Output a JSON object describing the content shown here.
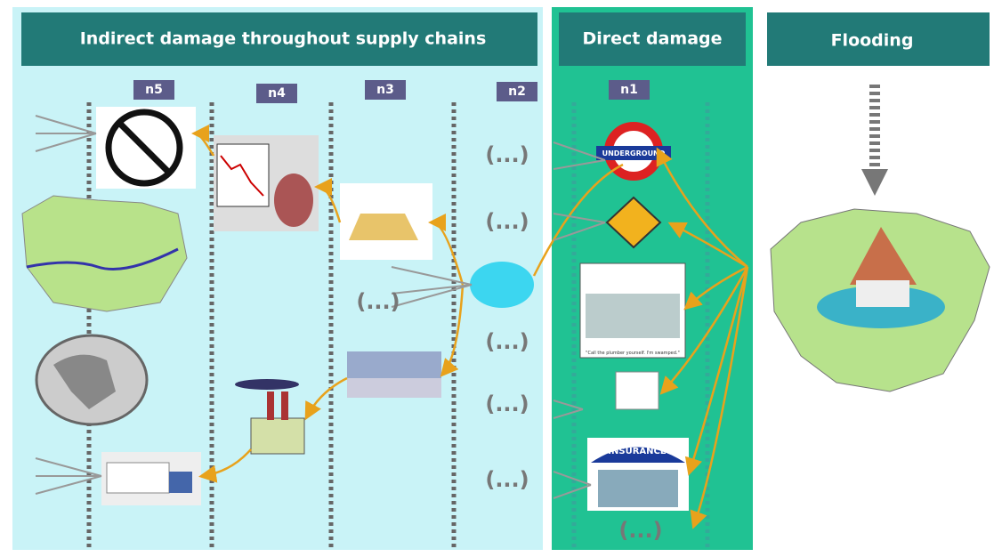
{
  "panels": [
    {
      "title": "Indirect damage throughout supply chains"
    },
    {
      "title": "Direct damage"
    },
    {
      "title": "Flooding"
    }
  ],
  "levels": [
    "n5",
    "n4",
    "n3",
    "n2",
    "n1"
  ],
  "ellipses": [
    "(...)",
    "(...)",
    "(...)",
    "(...)",
    "(...)",
    "(...)",
    "(...)"
  ],
  "icons": {
    "underground": "UNDERGROUND",
    "insurance": "INSURANCE",
    "cartoon_caption": "\"Call the plumber yourself. I'm swamped.\""
  }
}
